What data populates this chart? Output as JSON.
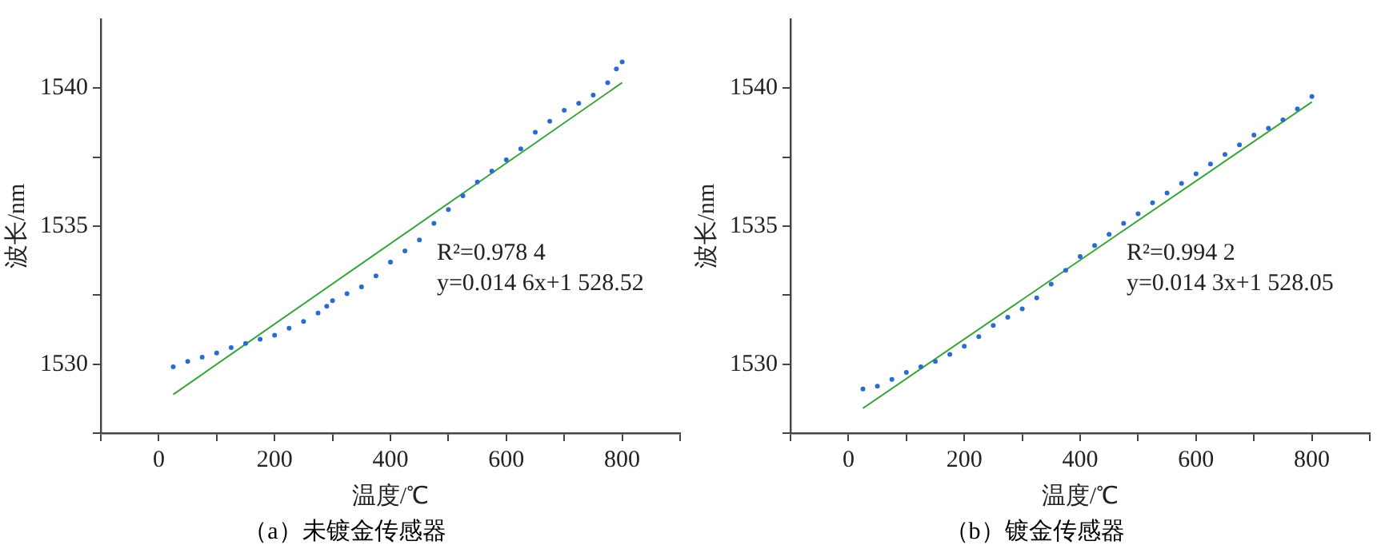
{
  "chart_data": [
    {
      "type": "scatter",
      "title": "（a）未镀金传感器",
      "xlabel": "温度/℃",
      "ylabel": "波长/nm",
      "marker": "circle",
      "grid": false,
      "legend": false,
      "xlim": [
        -100,
        900
      ],
      "xticks": [
        {
          "value": -100,
          "label": null
        },
        0,
        {
          "value": 100,
          "label": null
        },
        200,
        {
          "value": 300,
          "label": null
        },
        400,
        {
          "value": 500,
          "label": null
        },
        600,
        {
          "value": 700,
          "label": null
        },
        800,
        {
          "value": 900,
          "label": null
        }
      ],
      "ylim": [
        1527.5,
        1542.5
      ],
      "yticks": [
        {
          "value": 1527.5,
          "label": null
        },
        1530,
        {
          "value": 1532.5,
          "label": null
        },
        1535,
        {
          "value": 1537.5,
          "label": null
        },
        1540
      ],
      "annotations": [
        "R²=0.978 4",
        "y=0.014 6x+1 528.52"
      ],
      "series": [
        {
          "color": "#2a6ccc",
          "x": [
            25,
            50,
            75,
            100,
            125,
            150,
            175,
            200,
            225,
            250,
            275,
            290,
            300,
            325,
            350,
            375,
            400,
            425,
            450,
            475,
            500,
            525,
            550,
            575,
            600,
            625,
            650,
            675,
            700,
            725,
            750,
            775,
            790,
            800
          ],
          "values": [
            1529.9,
            1530.1,
            1530.25,
            1530.4,
            1530.6,
            1530.75,
            1530.9,
            1531.05,
            1531.3,
            1531.55,
            1531.85,
            1532.1,
            1532.3,
            1532.55,
            1532.8,
            1533.2,
            1533.7,
            1534.1,
            1534.5,
            1535.1,
            1535.6,
            1536.1,
            1536.6,
            1537.0,
            1537.4,
            1537.8,
            1538.4,
            1538.8,
            1539.2,
            1539.45,
            1539.75,
            1540.2,
            1540.7,
            1540.95
          ]
        },
        {
          "type": "line",
          "color": "#3aa53a",
          "marker": "none",
          "x": [
            25,
            800
          ],
          "values": [
            1528.9,
            1540.2
          ]
        }
      ]
    },
    {
      "type": "scatter",
      "title": "（b）镀金传感器",
      "xlabel": "温度/℃",
      "ylabel": "波长/nm",
      "marker": "circle",
      "grid": false,
      "legend": false,
      "xlim": [
        -100,
        900
      ],
      "xticks": [
        {
          "value": -100,
          "label": null
        },
        0,
        {
          "value": 100,
          "label": null
        },
        200,
        {
          "value": 300,
          "label": null
        },
        400,
        {
          "value": 500,
          "label": null
        },
        600,
        {
          "value": 700,
          "label": null
        },
        800,
        {
          "value": 900,
          "label": null
        }
      ],
      "ylim": [
        1527.5,
        1542.5
      ],
      "yticks": [
        {
          "value": 1527.5,
          "label": null
        },
        1530,
        {
          "value": 1532.5,
          "label": null
        },
        1535,
        {
          "value": 1537.5,
          "label": null
        },
        1540
      ],
      "annotations": [
        "R²=0.994 2",
        "y=0.014 3x+1 528.05"
      ],
      "series": [
        {
          "color": "#2a6ccc",
          "x": [
            25,
            50,
            75,
            100,
            125,
            150,
            175,
            200,
            225,
            250,
            275,
            300,
            325,
            350,
            375,
            400,
            425,
            450,
            475,
            500,
            525,
            550,
            575,
            600,
            625,
            650,
            675,
            700,
            725,
            750,
            775,
            800
          ],
          "values": [
            1529.1,
            1529.2,
            1529.45,
            1529.7,
            1529.9,
            1530.1,
            1530.35,
            1530.65,
            1531.0,
            1531.4,
            1531.7,
            1532.0,
            1532.4,
            1532.9,
            1533.4,
            1533.9,
            1534.3,
            1534.7,
            1535.1,
            1535.45,
            1535.85,
            1536.2,
            1536.55,
            1536.9,
            1537.25,
            1537.6,
            1537.95,
            1538.3,
            1538.55,
            1538.85,
            1539.25,
            1539.7
          ]
        },
        {
          "type": "line",
          "color": "#3aa53a",
          "marker": "none",
          "x": [
            25,
            800
          ],
          "values": [
            1528.4,
            1539.5
          ]
        }
      ]
    }
  ]
}
